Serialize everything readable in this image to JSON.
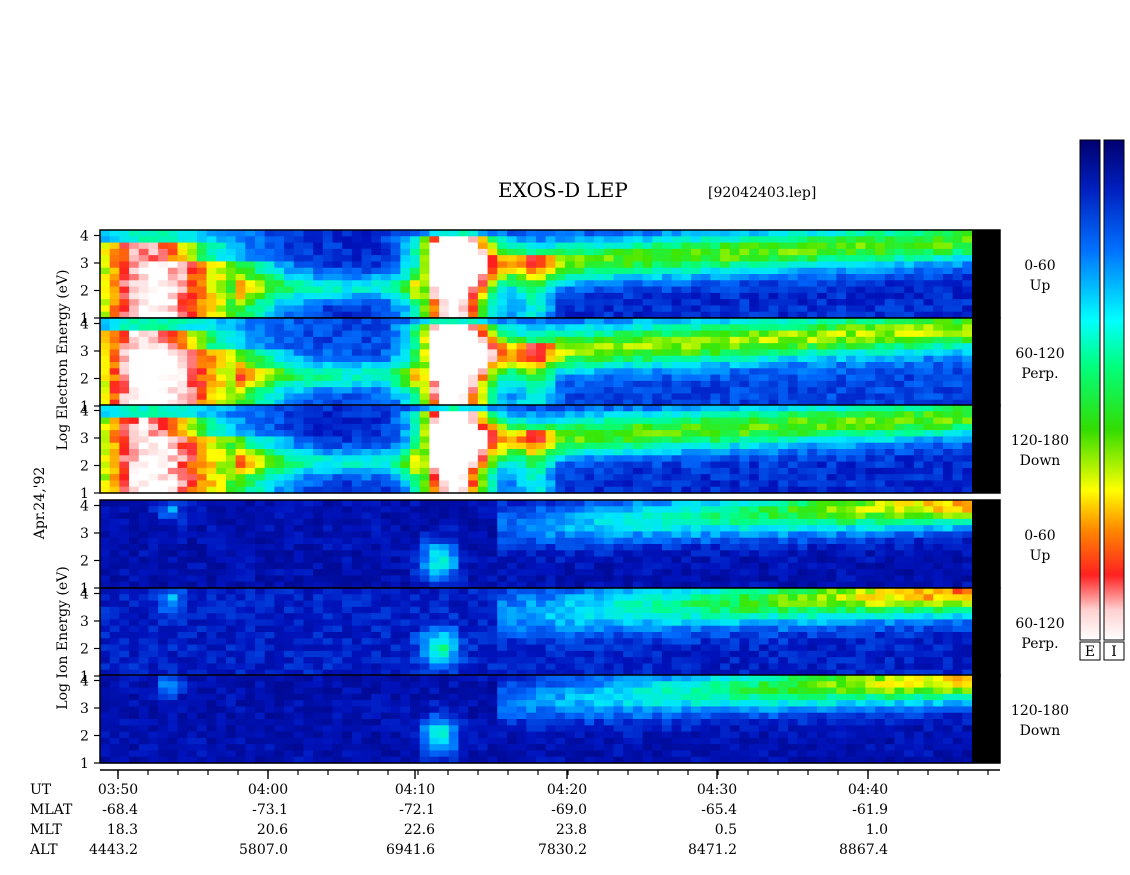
{
  "title": "EXOS-D LEP",
  "filename": "[92042403.lep]",
  "date_label": "Apr.24,'92",
  "electron_axis_label": "Log Electron Energy (eV)",
  "ion_axis_label": "Log Ion Energy (eV)",
  "colorbars": {
    "labels": [
      "E",
      "I"
    ]
  },
  "chart_data": {
    "type": "heatmap",
    "x_axis": {
      "label": "UT",
      "ticks": [
        "03:50",
        "04:00",
        "04:10",
        "04:20",
        "04:30",
        "04:40"
      ],
      "minor_ticks_per_major": 5
    },
    "y_ticks": [
      "1",
      "2",
      "3",
      "4"
    ],
    "panels": [
      {
        "species": "Electron",
        "angle": "0-60",
        "direction": "Up",
        "ylim": [
          1,
          4.2
        ]
      },
      {
        "species": "Electron",
        "angle": "60-120",
        "direction": "Perp.",
        "ylim": [
          1,
          4.2
        ]
      },
      {
        "species": "Electron",
        "angle": "120-180",
        "direction": "Down",
        "ylim": [
          1,
          4.2
        ]
      },
      {
        "species": "Ion",
        "angle": "0-60",
        "direction": "Up",
        "ylim": [
          1,
          4.2
        ]
      },
      {
        "species": "Ion",
        "angle": "60-120",
        "direction": "Perp.",
        "ylim": [
          1,
          4.2
        ]
      },
      {
        "species": "Ion",
        "angle": "120-180",
        "direction": "Down",
        "ylim": [
          1,
          4.2
        ]
      }
    ],
    "ephemeris": [
      {
        "name": "MLAT",
        "values": [
          "-68.4",
          "-73.1",
          "-72.1",
          "-69.0",
          "-65.4",
          "-61.9"
        ]
      },
      {
        "name": "MLT",
        "values": [
          "18.3",
          "20.6",
          "22.6",
          "23.8",
          "0.5",
          "1.0"
        ]
      },
      {
        "name": "ALT",
        "values": [
          "4443.2",
          "5807.0",
          "6941.6",
          "7830.2",
          "8471.2",
          "8867.4"
        ]
      }
    ]
  }
}
